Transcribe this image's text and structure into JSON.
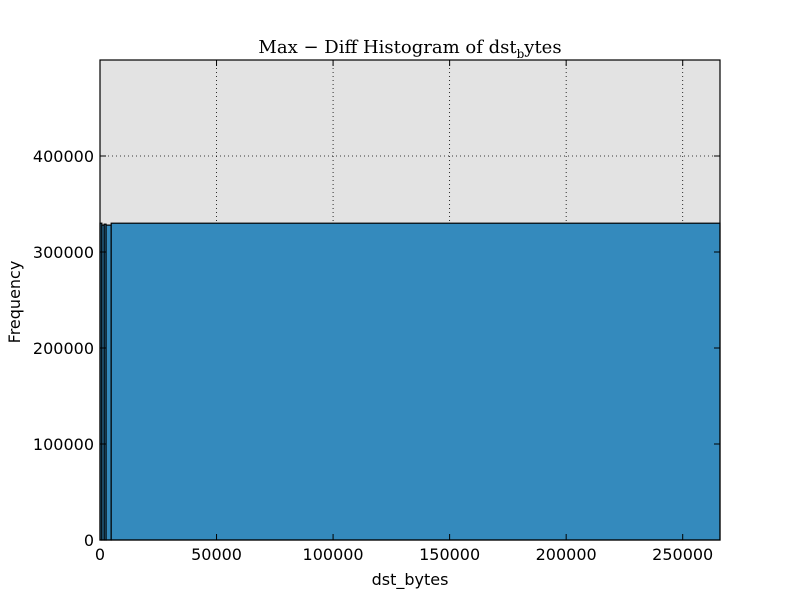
{
  "chart_data": {
    "type": "bar",
    "title": "Max − Diff Histogram of dst_bytes",
    "title_main": "Max − Diff Histogram of dst",
    "title_sub": "b",
    "title_tail": "ytes",
    "xlabel": "dst_bytes",
    "ylabel": "Frequency",
    "xlim": [
      0,
      266000
    ],
    "ylim": [
      0,
      500000
    ],
    "xticks": [
      0,
      50000,
      100000,
      150000,
      200000,
      250000
    ],
    "yticks": [
      0,
      100000,
      200000,
      300000,
      400000
    ],
    "grid": true,
    "bins": [
      {
        "x0": 0,
        "x1": 800,
        "value": 330000
      },
      {
        "x0": 800,
        "x1": 1800,
        "value": 328000
      },
      {
        "x0": 1800,
        "x1": 2600,
        "value": 329000
      },
      {
        "x0": 2600,
        "x1": 4800,
        "value": 328000
      },
      {
        "x0": 4800,
        "x1": 266000,
        "value": 330000
      }
    ],
    "colors": {
      "plot_background": "#e3e3e3",
      "bar_fill": "#348abd",
      "bar_edge": "#000000",
      "grid": "#000000"
    }
  }
}
